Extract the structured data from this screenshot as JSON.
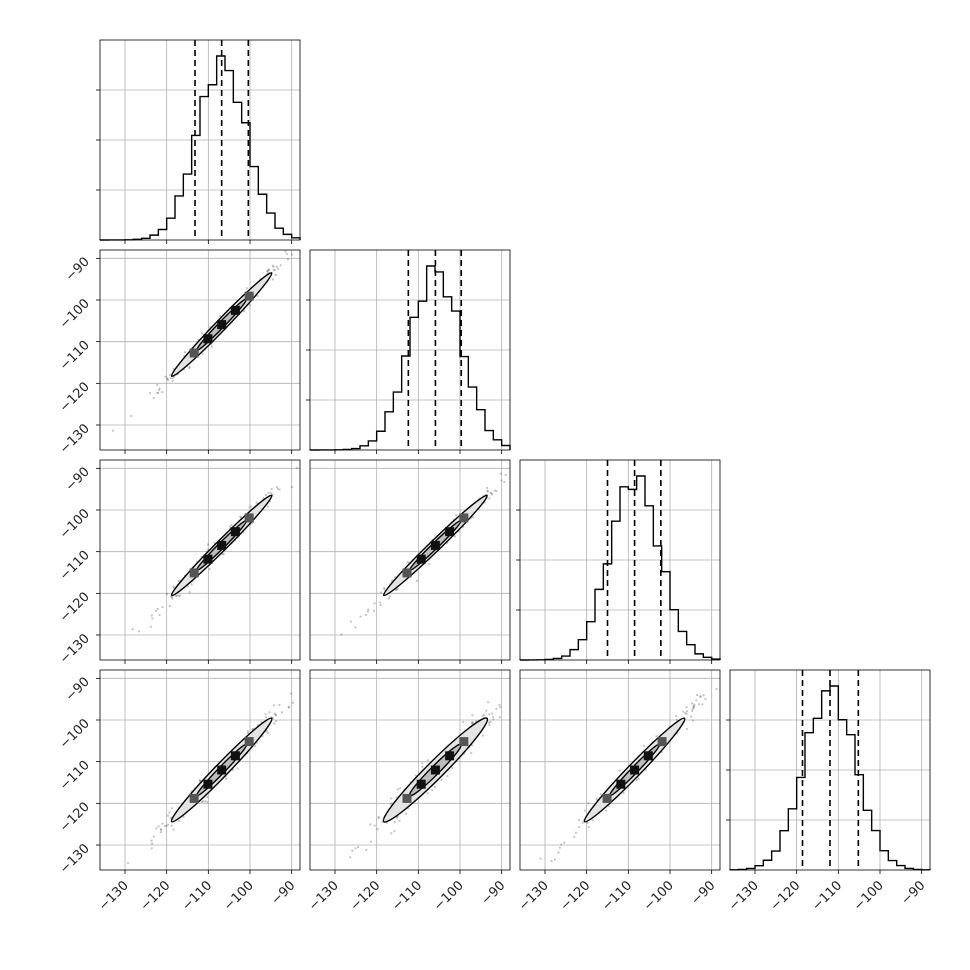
{
  "chart_data": {
    "type": "corner",
    "n_params": 4,
    "axis_range": [
      -136,
      -88
    ],
    "tick_values": [
      -130,
      -120,
      -110,
      -100,
      -90
    ],
    "tick_labels": [
      "−130",
      "−120",
      "−110",
      "−100",
      "−90"
    ],
    "grid": true,
    "hist_bins": 24,
    "colors": {
      "line": "#000000",
      "grid": "#b0b0b0",
      "scatter": "#555555"
    },
    "parameters": [
      {
        "mean": -106.8,
        "std": 6.0,
        "quantiles": [
          -113.2,
          -106.8,
          -100.4
        ],
        "hist_max_frac": 1.0
      },
      {
        "mean": -105.9,
        "std": 6.2,
        "quantiles": [
          -112.4,
          -105.9,
          -99.7
        ],
        "hist_max_frac": 1.0
      },
      {
        "mean": -108.5,
        "std": 6.0,
        "quantiles": [
          -115.0,
          -108.5,
          -102.2
        ],
        "hist_max_frac": 1.0
      },
      {
        "mean": -112.0,
        "std": 6.2,
        "quantiles": [
          -118.6,
          -112.0,
          -105.2
        ],
        "hist_max_frac": 1.0
      }
    ],
    "correlations": [
      [
        1.0,
        0.99,
        0.99,
        0.985
      ],
      [
        0.99,
        1.0,
        0.99,
        0.975
      ],
      [
        0.99,
        0.99,
        1.0,
        0.985
      ],
      [
        0.985,
        0.975,
        0.985,
        1.0
      ]
    ]
  }
}
